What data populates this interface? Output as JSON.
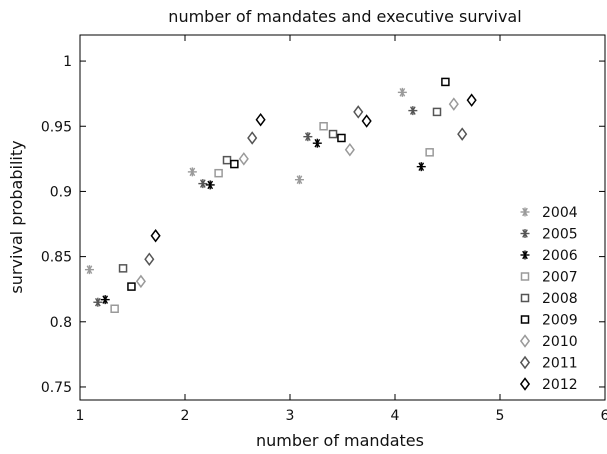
{
  "chart_data": {
    "type": "scatter",
    "title": "number of mandates and executive survival",
    "xlabel": "number of mandates",
    "ylabel": "survival probability",
    "xlim": [
      1,
      6
    ],
    "ylim": [
      0.74,
      1.02
    ],
    "xticks": [
      1,
      2,
      3,
      4,
      5,
      6
    ],
    "yticks": [
      0.75,
      0.8,
      0.85,
      0.9,
      0.95,
      1
    ],
    "ytick_labels": [
      "0.75",
      "0.8",
      "0.85",
      "0.9",
      "0.95",
      "1"
    ],
    "legend_position": "bottom-right",
    "grid": false,
    "series": [
      {
        "name": "2004",
        "marker": "asterisk",
        "color": "#9a9a9a",
        "points": [
          [
            1.09,
            0.84
          ],
          [
            2.07,
            0.915
          ],
          [
            3.09,
            0.909
          ],
          [
            4.07,
            0.976
          ]
        ]
      },
      {
        "name": "2005",
        "marker": "asterisk",
        "color": "#555555",
        "points": [
          [
            1.17,
            0.815
          ],
          [
            2.17,
            0.906
          ],
          [
            3.17,
            0.942
          ],
          [
            4.17,
            0.962
          ]
        ]
      },
      {
        "name": "2006",
        "marker": "asterisk",
        "color": "#000000",
        "points": [
          [
            1.24,
            0.817
          ],
          [
            2.24,
            0.905
          ],
          [
            3.26,
            0.937
          ],
          [
            4.25,
            0.919
          ]
        ]
      },
      {
        "name": "2007",
        "marker": "square",
        "color": "#9a9a9a",
        "points": [
          [
            1.33,
            0.81
          ],
          [
            2.32,
            0.914
          ],
          [
            3.32,
            0.95
          ],
          [
            4.33,
            0.93
          ]
        ]
      },
      {
        "name": "2008",
        "marker": "square",
        "color": "#555555",
        "points": [
          [
            1.41,
            0.841
          ],
          [
            2.4,
            0.924
          ],
          [
            3.41,
            0.944
          ],
          [
            4.4,
            0.961
          ]
        ]
      },
      {
        "name": "2009",
        "marker": "square",
        "color": "#000000",
        "points": [
          [
            1.49,
            0.827
          ],
          [
            2.47,
            0.921
          ],
          [
            3.49,
            0.941
          ],
          [
            4.48,
            0.984
          ]
        ]
      },
      {
        "name": "2010",
        "marker": "diamond",
        "color": "#9a9a9a",
        "points": [
          [
            1.58,
            0.831
          ],
          [
            2.56,
            0.925
          ],
          [
            3.57,
            0.932
          ],
          [
            4.56,
            0.967
          ]
        ]
      },
      {
        "name": "2011",
        "marker": "diamond",
        "color": "#555555",
        "points": [
          [
            1.66,
            0.848
          ],
          [
            2.64,
            0.941
          ],
          [
            3.65,
            0.961
          ],
          [
            4.64,
            0.944
          ]
        ]
      },
      {
        "name": "2012",
        "marker": "diamond",
        "color": "#000000",
        "points": [
          [
            1.72,
            0.866
          ],
          [
            2.72,
            0.955
          ],
          [
            3.73,
            0.954
          ],
          [
            4.73,
            0.97
          ]
        ]
      }
    ]
  }
}
